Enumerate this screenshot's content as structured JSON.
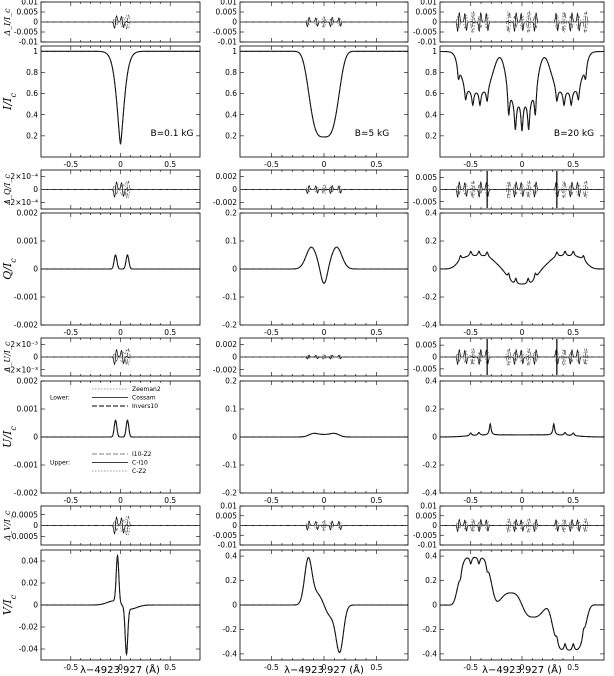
{
  "chart_data": {
    "type": "line",
    "x_axis_label": "λ−4923.927 (Å)",
    "xlim": [
      -0.8,
      0.8
    ],
    "x_ticks": [
      "-0.5",
      "0",
      "0.5"
    ],
    "columns": [
      {
        "label": "B=0.1 kG",
        "profile": "narrow"
      },
      {
        "label": "B=5 kG",
        "profile": "medium"
      },
      {
        "label": "B=20 kG",
        "profile": "wide"
      }
    ],
    "stokes_rows": [
      {
        "param": "I",
        "main_label": "I/I",
        "main_sub": "c",
        "diff_label": "Δ_I/I_c",
        "cols": [
          {
            "main_ylim": [
              0,
              1.05
            ],
            "main_ticks": [
              "0.2",
              "0.4",
              "0.6",
              "0.8",
              "1"
            ],
            "diff_ylim": [
              -0.01,
              0.01
            ],
            "diff_ticks": [
              "0.01",
              "0.005",
              "0",
              "-0.005",
              "-0.01"
            ],
            "diff_amp": 0.004
          },
          {
            "main_ylim": [
              0,
              1.05
            ],
            "main_ticks": [
              "0.2",
              "0.4",
              "0.6",
              "0.8",
              "1"
            ],
            "diff_ylim": [
              -0.01,
              0.01
            ],
            "diff_ticks": [
              "0.01",
              "0.005",
              "0",
              "-0.005",
              "-0.01"
            ],
            "diff_amp": 0.003
          },
          {
            "main_ylim": [
              0,
              1.05
            ],
            "main_ticks": [
              "0.2",
              "0.4",
              "0.6",
              "0.8",
              "1"
            ],
            "diff_ylim": [
              -0.01,
              0.01
            ],
            "diff_ticks": [
              "0.01",
              "0.005",
              "0",
              "-0.005",
              "-0.01"
            ],
            "diff_amp": 0.006
          }
        ]
      },
      {
        "param": "Q",
        "main_label": "Q/I",
        "main_sub": "c",
        "diff_label": "Δ_Q/I_c",
        "cols": [
          {
            "main_ylim": [
              -0.002,
              0.002
            ],
            "main_ticks": [
              "0.002",
              "0.001",
              "0",
              "-0.001",
              "-0.002"
            ],
            "diff_ylim": [
              -0.0003,
              0.0003
            ],
            "diff_ticks": [
              "2×10⁻⁴",
              "0",
              "−2×10⁻⁴"
            ],
            "diff_amp": 0.00015
          },
          {
            "main_ylim": [
              -0.2,
              0.2
            ],
            "main_ticks": [
              "0.2",
              "0.1",
              "0",
              "-0.1",
              "-0.2"
            ],
            "diff_ylim": [
              -0.003,
              0.003
            ],
            "diff_ticks": [
              "0.002",
              "0",
              "-0.002"
            ],
            "diff_amp": 0.0008
          },
          {
            "main_ylim": [
              -0.4,
              0.4
            ],
            "main_ticks": [
              "0.4",
              "0.2",
              "0",
              "-0.2",
              "-0.4"
            ],
            "diff_ylim": [
              -0.008,
              0.008
            ],
            "diff_ticks": [
              "0.005",
              "0",
              "-0.005"
            ],
            "diff_amp": 0.004
          }
        ]
      },
      {
        "param": "U",
        "main_label": "U/I",
        "main_sub": "c",
        "diff_label": "Δ_U/I_c",
        "cols": [
          {
            "main_ylim": [
              -0.002,
              0.002
            ],
            "main_ticks": [
              "0.002",
              "0.001",
              "0",
              "-0.001",
              "-0.002"
            ],
            "diff_ylim": [
              -0.003,
              0.003
            ],
            "diff_ticks": [
              "2×10⁻³",
              "0",
              "−2×10⁻³"
            ],
            "diff_amp": 0.0015
          },
          {
            "main_ylim": [
              -0.2,
              0.2
            ],
            "main_ticks": [
              "0.2",
              "0.1",
              "0",
              "-0.1",
              "-0.2"
            ],
            "diff_ylim": [
              -0.003,
              0.003
            ],
            "diff_ticks": [
              "0.002",
              "0",
              "-0.002"
            ],
            "diff_amp": 0.0004
          },
          {
            "main_ylim": [
              -0.4,
              0.4
            ],
            "main_ticks": [
              "0.4",
              "0.2",
              "0",
              "-0.2",
              "-0.4"
            ],
            "diff_ylim": [
              -0.008,
              0.008
            ],
            "diff_ticks": [
              "0.005",
              "0",
              "-0.005"
            ],
            "diff_amp": 0.004
          }
        ]
      },
      {
        "param": "V",
        "main_label": "V/I",
        "main_sub": "c",
        "diff_label": "Δ_V/I_c",
        "cols": [
          {
            "main_ylim": [
              -0.05,
              0.05
            ],
            "main_ticks": [
              "0.04",
              "0.02",
              "0",
              "-0.02",
              "-0.04"
            ],
            "diff_ylim": [
              -0.0009,
              0.0009
            ],
            "diff_ticks": [
              "0.0005",
              "0",
              "-0.0005"
            ],
            "diff_amp": 0.0005
          },
          {
            "main_ylim": [
              -0.45,
              0.45
            ],
            "main_ticks": [
              "0.4",
              "0.2",
              "0",
              "-0.2",
              "-0.4"
            ],
            "diff_ylim": [
              -0.01,
              0.01
            ],
            "diff_ticks": [
              "0.01",
              "0.005",
              "0",
              "-0.005",
              "-0.01"
            ],
            "diff_amp": 0.003
          },
          {
            "main_ylim": [
              -0.45,
              0.45
            ],
            "main_ticks": [
              "0.4",
              "0.2",
              "0",
              "-0.2",
              "-0.4"
            ],
            "diff_ylim": [
              -0.01,
              0.01
            ],
            "diff_ticks": [
              "0.01",
              "0.005",
              "0",
              "-0.005",
              "-0.01"
            ],
            "diff_amp": 0.004
          }
        ]
      }
    ],
    "legend": {
      "lower_label": "Lower:",
      "lower": [
        "Zeeman2",
        "Cossam",
        "Invers10"
      ],
      "upper_label": "Upper:",
      "upper": [
        "I10-Z2",
        "C-I10",
        "C-Z2"
      ]
    }
  }
}
